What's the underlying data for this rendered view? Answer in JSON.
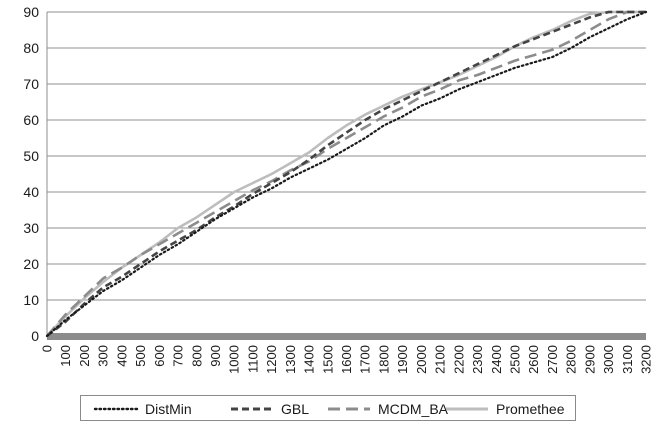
{
  "chart_data": {
    "type": "line",
    "title": "",
    "xlabel": "",
    "ylabel": "",
    "xlim": [
      0,
      3200
    ],
    "ylim": [
      0,
      90
    ],
    "yticks": [
      0,
      10,
      20,
      30,
      40,
      50,
      60,
      70,
      80,
      90
    ],
    "xticks": [
      0,
      100,
      200,
      300,
      400,
      500,
      600,
      700,
      800,
      900,
      1000,
      1100,
      1200,
      1300,
      1400,
      1500,
      1600,
      1700,
      1800,
      1900,
      2000,
      2100,
      2200,
      2300,
      2400,
      2500,
      2600,
      2700,
      2800,
      2900,
      3000,
      3100,
      3200
    ],
    "grid": "horizontal",
    "legend": "bottom",
    "x": [
      0,
      100,
      200,
      300,
      400,
      500,
      600,
      700,
      800,
      900,
      1000,
      1100,
      1200,
      1300,
      1400,
      1500,
      1600,
      1700,
      1800,
      1900,
      2000,
      2100,
      2200,
      2300,
      2400,
      2500,
      2600,
      2700,
      2800,
      2900,
      3000,
      3100,
      3200
    ],
    "series": [
      {
        "name": "DistMin",
        "color": "#1a1a1a",
        "dash": "dotted",
        "values": [
          0,
          4.5,
          8.5,
          12.5,
          15.5,
          19,
          22.5,
          25.5,
          29,
          32.5,
          35.5,
          38.5,
          41,
          44,
          46.5,
          49,
          52,
          55,
          58.5,
          61,
          64,
          66,
          68.5,
          70.5,
          72.5,
          74.5,
          76,
          77.5,
          80,
          83,
          85.5,
          88,
          90
        ]
      },
      {
        "name": "GBL",
        "color": "#444444",
        "dash": "dashed",
        "values": [
          0,
          4,
          9,
          13.5,
          16.5,
          20,
          23.5,
          26.5,
          29.5,
          33,
          36,
          39.5,
          42.5,
          45.5,
          49,
          53,
          56.5,
          60,
          63,
          65.5,
          68,
          70.5,
          73,
          75.5,
          78,
          80.5,
          82.5,
          84.5,
          86.5,
          88.5,
          90,
          90,
          90
        ]
      },
      {
        "name": "MCDM_BA",
        "color": "#8c8c8c",
        "dash": "longdash",
        "values": [
          0,
          6,
          11,
          16,
          19,
          22.5,
          25.5,
          28.5,
          31.5,
          34.5,
          37.5,
          40.5,
          43,
          46,
          48.5,
          52,
          55,
          58,
          61,
          63.5,
          66.5,
          68.5,
          71,
          72.5,
          74.5,
          76.5,
          78,
          79.5,
          82,
          85,
          88,
          90,
          90
        ]
      },
      {
        "name": "Promethee",
        "color": "#bdbdbd",
        "dash": "solid",
        "values": [
          0,
          5.5,
          10.5,
          15,
          19,
          22.5,
          26,
          30,
          33,
          36.5,
          40,
          42.5,
          45,
          48,
          51,
          55,
          58.5,
          61.5,
          64,
          66.5,
          68.5,
          70.5,
          72.5,
          75,
          77.5,
          80.5,
          83,
          85,
          87.5,
          89.5,
          90,
          90,
          90
        ]
      }
    ]
  }
}
